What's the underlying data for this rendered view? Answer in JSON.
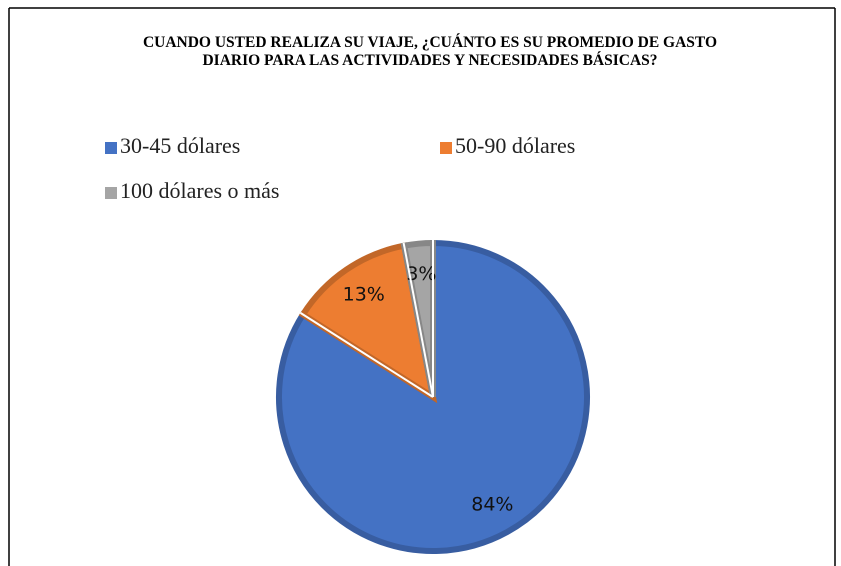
{
  "chart_data": {
    "type": "pie",
    "title": "CUANDO USTED REALIZA SU VIAJE, ¿CUÁNTO ES SU PROMEDIO DE GASTO DIARIO PARA LAS ACTIVIDADES Y NECESIDADES BÁSICAS?",
    "categories": [
      "30-45 dólares",
      "50-90 dólares",
      "100 dólares o más"
    ],
    "values": [
      84,
      13,
      3
    ],
    "value_labels": [
      "84%",
      "13%",
      "3%"
    ],
    "colors": [
      "#4472c4",
      "#ed7d31",
      "#a5a5a5"
    ],
    "legend": "top"
  }
}
